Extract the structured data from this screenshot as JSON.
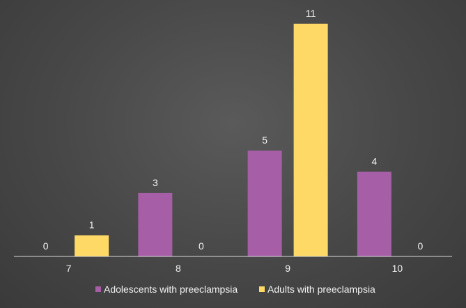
{
  "chart_data": {
    "type": "bar",
    "categories": [
      "7",
      "8",
      "9",
      "10"
    ],
    "series": [
      {
        "name": "Adolescents with preeclampsia",
        "values": [
          0,
          3,
          5,
          4
        ],
        "color": "#a65fa6"
      },
      {
        "name": "Adults with preeclampsia",
        "values": [
          1,
          0,
          11,
          0
        ],
        "color": "#ffd966"
      }
    ],
    "data_labels": true,
    "ylim": [
      0,
      11
    ],
    "grid": false,
    "legend_position": "bottom",
    "title": "",
    "xlabel": "",
    "ylabel": ""
  }
}
